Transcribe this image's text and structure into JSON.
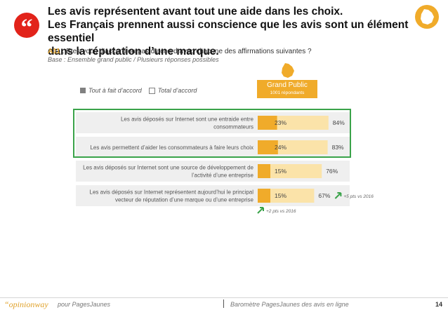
{
  "header": {
    "quote_mark": "“",
    "headline_lines": [
      "Les avis représentent avant tout une aide dans les choix.",
      "Les Français prennent aussi conscience que les avis sont un élément essentiel",
      "dans la réputation d’une marque."
    ]
  },
  "question": {
    "code": "A11",
    "text": " : Etes-vous d’accord ou pas d’accord avec chacune des affirmations suivantes ?",
    "base": "Base : Ensemble grand public / Plusieurs  réponses possibles"
  },
  "legend": {
    "filled_label": "Tout à fait d’accord",
    "empty_label": "Total  d’accord"
  },
  "group_badge": {
    "title": "Grand Public",
    "subtitle": "1001 répondants"
  },
  "chart_data": {
    "type": "bar",
    "orientation": "horizontal",
    "categories": [
      [
        "Les avis déposés sur Internet sont une entraide entre",
        "consommateurs"
      ],
      [
        "Les avis permettent d’aider les consommateurs à faire leurs choix"
      ],
      [
        "Les avis déposés sur Internet sont une source de développement de",
        "l’activité d’une entreprise"
      ],
      [
        "Les avis déposés sur Internet représentent aujourd’hui le principal",
        "vecteur de réputation d’une marque ou d’une entreprise"
      ]
    ],
    "series": [
      {
        "name": "Tout à fait d’accord",
        "values": [
          23,
          24,
          15,
          15
        ],
        "labels": [
          "23%",
          "24%",
          "15%",
          "15%"
        ]
      },
      {
        "name": "Total  d’accord",
        "values": [
          84,
          83,
          76,
          67
        ],
        "labels": [
          "84%",
          "83%",
          "76%",
          "67%"
        ]
      }
    ],
    "xlim": [
      0,
      100
    ],
    "annotations": [
      {
        "text": "+5 pts vs 2016",
        "category_index": 3,
        "series": 1,
        "direction": "up"
      },
      {
        "text": "+2 pts vs 2016",
        "category_index": 3,
        "series": 0,
        "direction": "up"
      }
    ],
    "highlighted_categories": [
      0,
      1
    ]
  },
  "colors": {
    "accent": "#f0ab2a",
    "accent_light": "#fbe3a9",
    "row_bg": "#efefef",
    "highlight": "#3aa34a",
    "quote_red": "#e2231a"
  },
  "footer": {
    "brand": "“opinionway",
    "brand_sub": "pour PagesJaunes",
    "title": "Baromètre PagesJaunes des avis en ligne",
    "page": "14"
  }
}
